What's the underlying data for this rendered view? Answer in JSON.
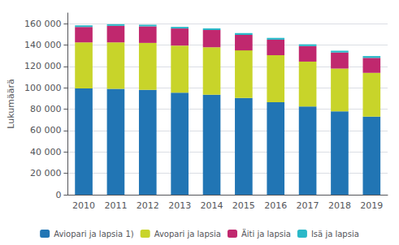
{
  "chart_data": {
    "type": "bar",
    "stacked": true,
    "ylabel": "Lukumäärä",
    "categories": [
      "2010",
      "2011",
      "2012",
      "2013",
      "2014",
      "2015",
      "2016",
      "2017",
      "2018",
      "2019"
    ],
    "series": [
      {
        "name": "Aviopari ja lapsia 1)",
        "color": "#2175b4",
        "values": [
          99500,
          99000,
          98000,
          95500,
          93500,
          90500,
          86500,
          82500,
          78000,
          73000
        ]
      },
      {
        "name": "Avopari ja lapsia",
        "color": "#c8d42a",
        "values": [
          43000,
          43500,
          44000,
          44000,
          44500,
          44500,
          44000,
          42000,
          40000,
          41000
        ]
      },
      {
        "name": "Äiti ja lapsia",
        "color": "#c0286e",
        "values": [
          14500,
          15500,
          15500,
          16000,
          16000,
          14500,
          14500,
          14500,
          15000,
          14000
        ]
      },
      {
        "name": "Isä ja lapsia",
        "color": "#2ab8c8",
        "values": [
          1500,
          1500,
          1500,
          1500,
          1500,
          1700,
          1700,
          1700,
          1700,
          1700
        ]
      }
    ],
    "ylim": [
      0,
      170000
    ],
    "yticks": [
      0,
      {
        "value": 20000,
        "label": "20 000"
      },
      {
        "value": 40000,
        "label": "40 000"
      },
      {
        "value": 60000,
        "label": "60 000"
      },
      {
        "value": 80000,
        "label": "80 000"
      },
      {
        "value": 100000,
        "label": "100 000"
      },
      {
        "value": 120000,
        "label": "120 000"
      },
      {
        "value": 140000,
        "label": "140 000"
      },
      {
        "value": 160000,
        "label": "160 000"
      }
    ],
    "grid": true,
    "legend": "bottom"
  }
}
